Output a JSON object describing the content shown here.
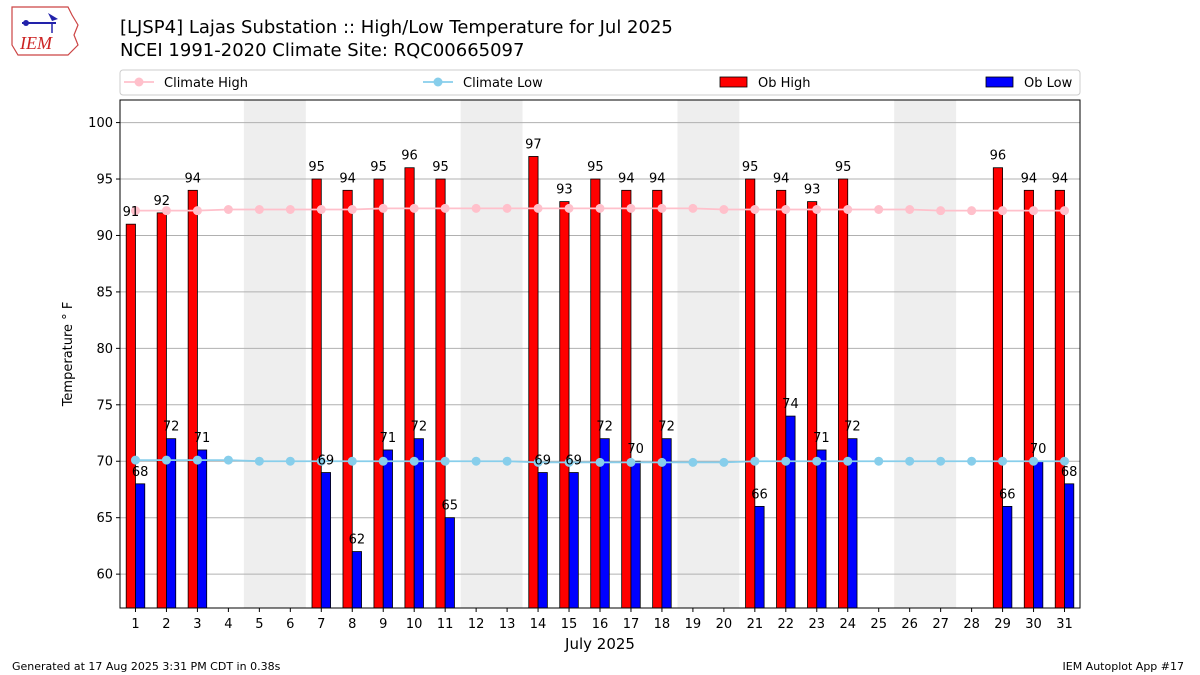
{
  "header": {
    "logo_text": "IEM",
    "title_line1": "[LJSP4] Lajas Substation :: High/Low Temperature for Jul 2025",
    "title_line2": "NCEI 1991-2020 Climate Site: RQC00665097"
  },
  "footer": {
    "left": "Generated at 17 Aug 2025 3:31 PM CDT in 0.38s",
    "right": "IEM Autoplot App #17"
  },
  "colors": {
    "ob_high": "#ff0000",
    "ob_low": "#0000ff",
    "climate_high": "#ffc0cb",
    "climate_low": "#87ceeb",
    "weekend_shade": "#eeeeee"
  },
  "chart_data": {
    "type": "bar",
    "xlabel": "July 2025",
    "ylabel": "Temperature ° F",
    "ylim": [
      57,
      102
    ],
    "yticks": [
      60,
      65,
      70,
      75,
      80,
      85,
      90,
      95,
      100
    ],
    "grid": true,
    "legend_position": "top",
    "categories": [
      "1",
      "2",
      "3",
      "4",
      "5",
      "6",
      "7",
      "8",
      "9",
      "10",
      "11",
      "12",
      "13",
      "14",
      "15",
      "16",
      "17",
      "18",
      "19",
      "20",
      "21",
      "22",
      "23",
      "24",
      "25",
      "26",
      "27",
      "28",
      "29",
      "30",
      "31"
    ],
    "shaded_day_ranges": [
      [
        5,
        6
      ],
      [
        12,
        13
      ],
      [
        19,
        20
      ],
      [
        26,
        27
      ]
    ],
    "series": [
      {
        "name": "Climate High",
        "kind": "line",
        "values": [
          92.2,
          92.2,
          92.2,
          92.3,
          92.3,
          92.3,
          92.3,
          92.3,
          92.4,
          92.4,
          92.4,
          92.4,
          92.4,
          92.4,
          92.4,
          92.4,
          92.4,
          92.4,
          92.4,
          92.3,
          92.3,
          92.3,
          92.3,
          92.3,
          92.3,
          92.3,
          92.2,
          92.2,
          92.2,
          92.2,
          92.2
        ]
      },
      {
        "name": "Climate Low",
        "kind": "line",
        "values": [
          70.1,
          70.1,
          70.1,
          70.1,
          70.0,
          70.0,
          70.0,
          70.0,
          70.0,
          70.0,
          70.0,
          70.0,
          70.0,
          69.9,
          69.9,
          69.9,
          69.9,
          69.9,
          69.9,
          69.9,
          70.0,
          70.0,
          70.0,
          70.0,
          70.0,
          70.0,
          70.0,
          70.0,
          70.0,
          70.0,
          70.0
        ]
      },
      {
        "name": "Ob High",
        "kind": "bar",
        "values": [
          91,
          92,
          94,
          null,
          null,
          null,
          95,
          94,
          95,
          96,
          95,
          null,
          null,
          97,
          93,
          95,
          94,
          94,
          null,
          null,
          95,
          94,
          93,
          95,
          null,
          null,
          null,
          null,
          96,
          94,
          94
        ]
      },
      {
        "name": "Ob Low",
        "kind": "bar",
        "values": [
          68,
          72,
          71,
          null,
          null,
          null,
          69,
          62,
          71,
          72,
          65,
          null,
          null,
          69,
          69,
          72,
          70,
          72,
          null,
          null,
          66,
          74,
          71,
          72,
          null,
          null,
          null,
          null,
          66,
          70,
          68
        ]
      }
    ]
  }
}
